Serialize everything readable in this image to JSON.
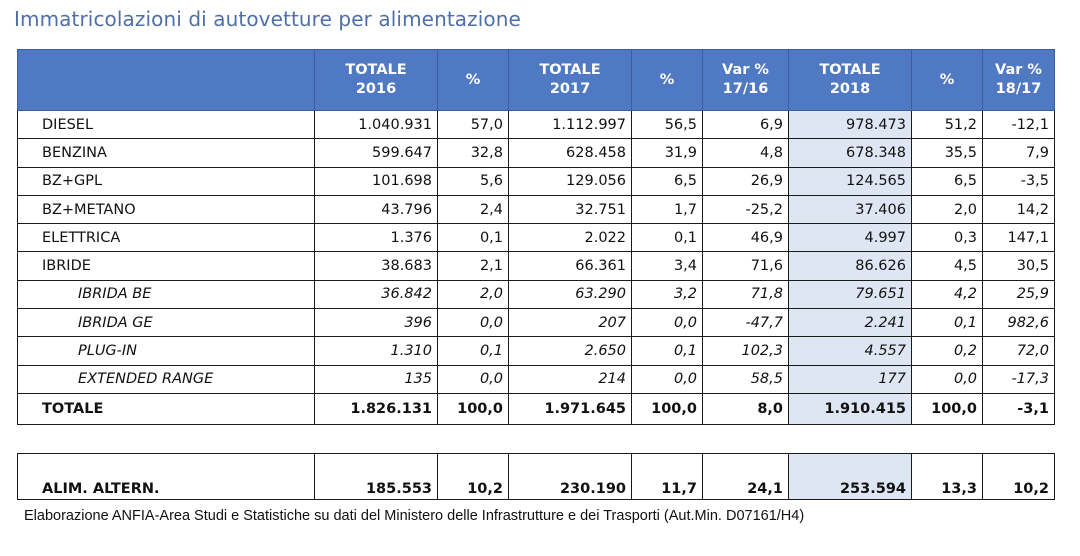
{
  "title": "Immatricolazioni di autovetture per alimentazione",
  "headers": {
    "c1": "",
    "c2a": "TOTALE",
    "c2b": "2016",
    "c3": "%",
    "c4a": "TOTALE",
    "c4b": "2017",
    "c5": "%",
    "c6a": "Var %",
    "c6b": "17/16",
    "c7a": "TOTALE",
    "c7b": "2018",
    "c8": "%",
    "c9a": "Var %",
    "c9b": "18/17"
  },
  "rows": [
    {
      "label": "DIESEL",
      "t2016": "1.040.931",
      "p2016": "57,0",
      "t2017": "1.112.997",
      "p2017": "56,5",
      "v1716": "6,9",
      "t2018": "978.473",
      "p2018": "51,2",
      "v1817": "-12,1"
    },
    {
      "label": "BENZINA",
      "t2016": "599.647",
      "p2016": "32,8",
      "t2017": "628.458",
      "p2017": "31,9",
      "v1716": "4,8",
      "t2018": "678.348",
      "p2018": "35,5",
      "v1817": "7,9"
    },
    {
      "label": "BZ+GPL",
      "t2016": "101.698",
      "p2016": "5,6",
      "t2017": "129.056",
      "p2017": "6,5",
      "v1716": "26,9",
      "t2018": "124.565",
      "p2018": "6,5",
      "v1817": "-3,5"
    },
    {
      "label": "BZ+METANO",
      "t2016": "43.796",
      "p2016": "2,4",
      "t2017": "32.751",
      "p2017": "1,7",
      "v1716": "-25,2",
      "t2018": "37.406",
      "p2018": "2,0",
      "v1817": "14,2"
    },
    {
      "label": "ELETTRICA",
      "t2016": "1.376",
      "p2016": "0,1",
      "t2017": "2.022",
      "p2017": "0,1",
      "v1716": "46,9",
      "t2018": "4.997",
      "p2018": "0,3",
      "v1817": "147,1"
    },
    {
      "label": "IBRIDE",
      "t2016": "38.683",
      "p2016": "2,1",
      "t2017": "66.361",
      "p2017": "3,4",
      "v1716": "71,6",
      "t2018": "86.626",
      "p2018": "4,5",
      "v1817": "30,5"
    },
    {
      "label": "IBRIDA BE",
      "t2016": "36.842",
      "p2016": "2,0",
      "t2017": "63.290",
      "p2017": "3,2",
      "v1716": "71,8",
      "t2018": "79.651",
      "p2018": "4,2",
      "v1817": "25,9"
    },
    {
      "label": "IBRIDA GE",
      "t2016": "396",
      "p2016": "0,0",
      "t2017": "207",
      "p2017": "0,0",
      "v1716": "-47,7",
      "t2018": "2.241",
      "p2018": "0,1",
      "v1817": "982,6"
    },
    {
      "label": "PLUG-IN",
      "t2016": "1.310",
      "p2016": "0,1",
      "t2017": "2.650",
      "p2017": "0,1",
      "v1716": "102,3",
      "t2018": "4.557",
      "p2018": "0,2",
      "v1817": "72,0"
    },
    {
      "label": "EXTENDED RANGE",
      "t2016": "135",
      "p2016": "0,0",
      "t2017": "214",
      "p2017": "0,0",
      "v1716": "58,5",
      "t2018": "177",
      "p2018": "0,0",
      "v1817": "-17,3"
    }
  ],
  "total": {
    "label": "TOTALE",
    "t2016": "1.826.131",
    "p2016": "100,0",
    "t2017": "1.971.645",
    "p2017": "100,0",
    "v1716": "8,0",
    "t2018": "1.910.415",
    "p2018": "100,0",
    "v1817": "-3,1"
  },
  "alt": {
    "label": "ALIM. ALTERN.",
    "t2016": "185.553",
    "p2016": "10,2",
    "t2017": "230.190",
    "p2017": "11,7",
    "v1716": "24,1",
    "t2018": "253.594",
    "p2018": "13,3",
    "v1817": "10,2"
  },
  "footer": "Elaborazione ANFIA-Area Studi e Statistiche su dati del Ministero delle Infrastrutture e dei Trasporti (Aut.Min. D07161/H4)",
  "colors": {
    "header_bg": "#5079c4",
    "title": "#4e6fa8",
    "highlight": "#dfe6f3"
  }
}
